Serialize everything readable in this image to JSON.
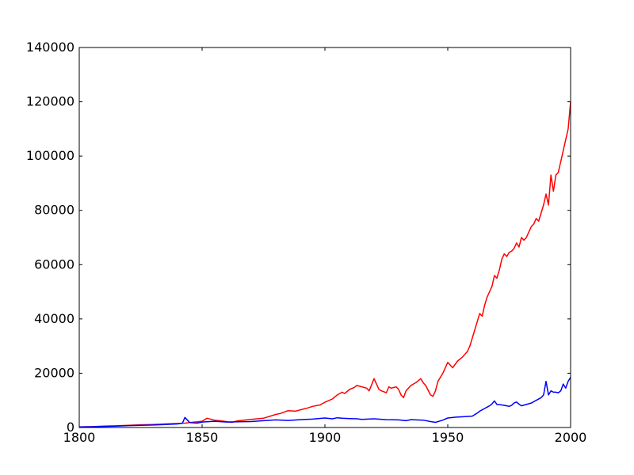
{
  "chart_data": {
    "type": "line",
    "title": "",
    "xlabel": "",
    "ylabel": "",
    "xlim": [
      1800,
      2000
    ],
    "ylim": [
      0,
      140000
    ],
    "grid": false,
    "legend": "none",
    "x_ticks": [
      1800,
      1850,
      1900,
      1950,
      2000
    ],
    "x_tick_labels": [
      "1800",
      "1850",
      "1900",
      "1950",
      "2000"
    ],
    "y_ticks": [
      0,
      20000,
      40000,
      60000,
      80000,
      100000,
      120000,
      140000
    ],
    "y_tick_labels": [
      "0",
      "20000",
      "40000",
      "60000",
      "80000",
      "100000",
      "120000",
      "140000"
    ],
    "series": [
      {
        "color": "#ff0000",
        "x": [
          1800,
          1805,
          1810,
          1815,
          1820,
          1825,
          1830,
          1835,
          1840,
          1843,
          1845,
          1850,
          1852,
          1855,
          1858,
          1862,
          1865,
          1870,
          1875,
          1880,
          1882,
          1885,
          1888,
          1890,
          1893,
          1895,
          1898,
          1900,
          1903,
          1905,
          1907,
          1908,
          1910,
          1912,
          1913,
          1915,
          1917,
          1918,
          1920,
          1921,
          1922,
          1923,
          1925,
          1926,
          1927,
          1929,
          1930,
          1931,
          1932,
          1933,
          1934,
          1935,
          1937,
          1939,
          1940,
          1941,
          1943,
          1944,
          1945,
          1946,
          1948,
          1950,
          1952,
          1954,
          1956,
          1958,
          1959,
          1960,
          1961,
          1962,
          1963,
          1964,
          1965,
          1966,
          1967,
          1968,
          1969,
          1970,
          1971,
          1972,
          1973,
          1974,
          1975,
          1976,
          1977,
          1978,
          1979,
          1980,
          1981,
          1982,
          1983,
          1984,
          1985,
          1986,
          1987,
          1988,
          1989,
          1990,
          1991,
          1992,
          1993,
          1994,
          1995,
          1996,
          1997,
          1998,
          1999,
          2000
        ],
        "values": [
          200,
          300,
          500,
          600,
          800,
          1000,
          1100,
          1300,
          1500,
          1600,
          1800,
          2300,
          3400,
          2700,
          2400,
          1900,
          2500,
          3000,
          3400,
          4800,
          5200,
          6200,
          6000,
          6500,
          7200,
          7800,
          8300,
          9300,
          10500,
          12000,
          13000,
          12500,
          14000,
          14800,
          15500,
          15000,
          14500,
          13500,
          18000,
          16000,
          14000,
          13500,
          12800,
          15000,
          14500,
          15000,
          14000,
          12000,
          11000,
          13500,
          14500,
          15500,
          16500,
          18000,
          16500,
          15500,
          12000,
          11500,
          13500,
          17000,
          20000,
          24000,
          22000,
          24500,
          26000,
          28000,
          30000,
          33000,
          36000,
          39000,
          42000,
          41000,
          45000,
          48000,
          50000,
          52000,
          56000,
          55000,
          58000,
          62000,
          64000,
          63000,
          64500,
          65000,
          66000,
          68000,
          66500,
          70000,
          69000,
          70000,
          72000,
          74000,
          75000,
          77000,
          76000,
          79000,
          82000,
          86000,
          82000,
          93000,
          87000,
          93000,
          94000,
          98000,
          102000,
          106000,
          110000,
          120000
        ]
      },
      {
        "color": "#0000ff",
        "x": [
          1800,
          1805,
          1810,
          1815,
          1820,
          1825,
          1830,
          1835,
          1840,
          1842,
          1843,
          1845,
          1848,
          1850,
          1855,
          1860,
          1865,
          1870,
          1875,
          1880,
          1885,
          1890,
          1895,
          1900,
          1903,
          1905,
          1907,
          1910,
          1913,
          1915,
          1920,
          1925,
          1930,
          1933,
          1935,
          1940,
          1943,
          1945,
          1948,
          1950,
          1953,
          1955,
          1957,
          1960,
          1962,
          1963,
          1964,
          1965,
          1966,
          1967,
          1968,
          1969,
          1970,
          1972,
          1974,
          1975,
          1976,
          1977,
          1978,
          1979,
          1980,
          1982,
          1984,
          1986,
          1988,
          1989,
          1990,
          1991,
          1992,
          1993,
          1994,
          1995,
          1996,
          1997,
          1998,
          1999,
          2000
        ],
        "values": [
          200,
          300,
          400,
          500,
          700,
          800,
          900,
          1100,
          1300,
          1600,
          3700,
          1800,
          1600,
          2000,
          2300,
          2000,
          2100,
          2200,
          2500,
          2800,
          2600,
          2900,
          3100,
          3500,
          3200,
          3600,
          3400,
          3300,
          3200,
          3000,
          3200,
          2900,
          2800,
          2500,
          2900,
          2700,
          2200,
          1900,
          2700,
          3500,
          3800,
          3900,
          4000,
          4200,
          5300,
          6000,
          6500,
          7000,
          7500,
          8000,
          8700,
          9800,
          8500,
          8300,
          8000,
          7800,
          8200,
          9000,
          9400,
          8600,
          8000,
          8500,
          9000,
          10000,
          11000,
          12000,
          17000,
          12000,
          13500,
          13000,
          13000,
          12800,
          13500,
          16000,
          14500,
          17000,
          18500
        ]
      }
    ]
  }
}
